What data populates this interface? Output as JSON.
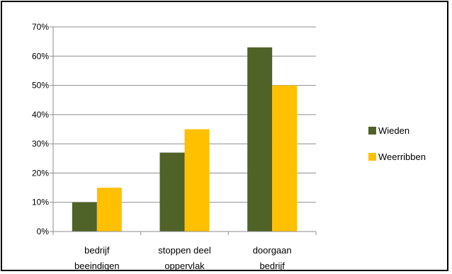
{
  "chart_data": {
    "type": "bar",
    "categories": [
      [
        "bedrijf",
        "beeindigen"
      ],
      [
        "stoppen deel",
        "oppervlak"
      ],
      [
        "doorgaan",
        "bedrijf"
      ]
    ],
    "series": [
      {
        "name": "Wieden",
        "values": [
          10,
          27,
          63
        ],
        "color": "#4F6228"
      },
      {
        "name": "Weerribben",
        "values": [
          15,
          35,
          50
        ],
        "color": "#FFC000"
      }
    ],
    "ylim": [
      0,
      70
    ],
    "yticks": [
      "0%",
      "10%",
      "20%",
      "30%",
      "40%",
      "50%",
      "60%",
      "70%"
    ],
    "value_unit": "%",
    "grid": true,
    "legend_position": "right",
    "title": "",
    "xlabel": "",
    "ylabel": ""
  }
}
